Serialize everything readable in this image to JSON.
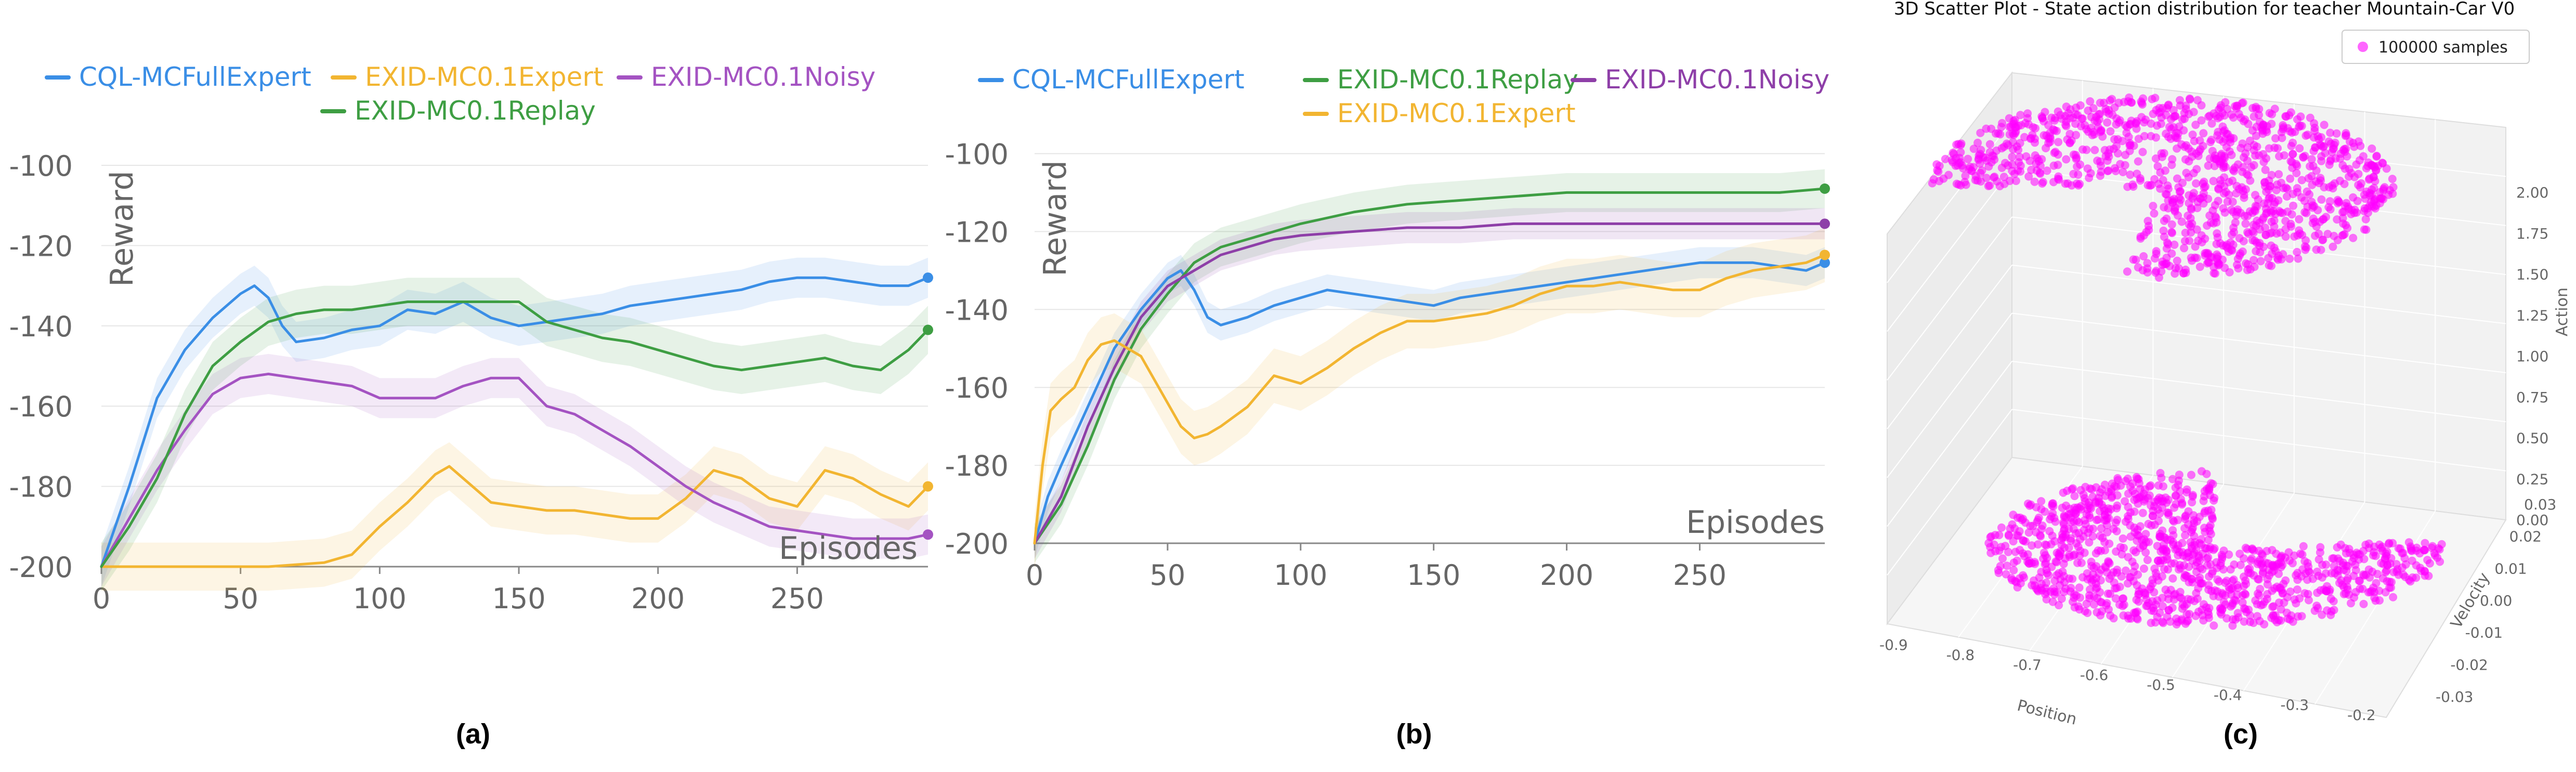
{
  "captions": {
    "a": "(a)",
    "b": "(b)",
    "c": "(c)"
  },
  "colors": {
    "cql": "#3a8ee6",
    "expert": "#f2b531",
    "replay": "#3e9e43",
    "noisy": "#a453c2",
    "noisy_b": "#8e3fa8",
    "scatter": "#ff00ff"
  },
  "chart_data": [
    {
      "id": "a",
      "type": "line",
      "ylabel": "Reward",
      "xlabel": "Episodes",
      "xlim": [
        0,
        297
      ],
      "ylim": [
        -200,
        -100
      ],
      "xticks": [
        0,
        50,
        100,
        150,
        200,
        250
      ],
      "yticks": [
        -200,
        -180,
        -160,
        -140,
        -120,
        -100
      ],
      "xtick_labels": [
        "0",
        "50",
        "100",
        "150",
        "200",
        "250"
      ],
      "ytick_labels": [
        "-200",
        "-180",
        "-160",
        "-140",
        "-120",
        "-100"
      ],
      "grid": "horizontal",
      "legend": "top",
      "series": [
        {
          "name": "CQL-MCFullExpert",
          "color": "#3a8ee6",
          "x": [
            0,
            10,
            20,
            30,
            40,
            50,
            55,
            60,
            65,
            70,
            80,
            90,
            100,
            110,
            120,
            130,
            140,
            150,
            160,
            170,
            180,
            190,
            200,
            210,
            220,
            230,
            240,
            250,
            260,
            270,
            280,
            290,
            297
          ],
          "y": [
            -200,
            -180,
            -158,
            -146,
            -138,
            -132,
            -130,
            -133,
            -140,
            -144,
            -143,
            -141,
            -140,
            -136,
            -137,
            -134,
            -138,
            -140,
            -139,
            -138,
            -137,
            -135,
            -134,
            -133,
            -132,
            -131,
            -129,
            -128,
            -128,
            -129,
            -130,
            -130,
            -128
          ],
          "band": 5
        },
        {
          "name": "EXID-MC0.1Expert",
          "color": "#f2b531",
          "x": [
            0,
            20,
            40,
            60,
            80,
            90,
            100,
            110,
            120,
            125,
            130,
            140,
            150,
            160,
            170,
            180,
            190,
            200,
            210,
            220,
            230,
            240,
            250,
            260,
            270,
            280,
            290,
            297
          ],
          "y": [
            -200,
            -200,
            -200,
            -200,
            -199,
            -197,
            -190,
            -184,
            -177,
            -175,
            -178,
            -184,
            -185,
            -186,
            -186,
            -187,
            -188,
            -188,
            -183,
            -176,
            -178,
            -183,
            -185,
            -176,
            -178,
            -182,
            -185,
            -180
          ],
          "band": 6
        },
        {
          "name": "EXID-MC0.1Noisy",
          "color": "#a453c2",
          "x": [
            0,
            10,
            20,
            30,
            40,
            50,
            60,
            70,
            80,
            90,
            100,
            110,
            120,
            130,
            140,
            150,
            160,
            170,
            180,
            190,
            200,
            210,
            220,
            230,
            240,
            250,
            260,
            270,
            280,
            290,
            297
          ],
          "y": [
            -200,
            -188,
            -176,
            -166,
            -157,
            -153,
            -152,
            -153,
            -154,
            -155,
            -158,
            -158,
            -158,
            -155,
            -153,
            -153,
            -160,
            -162,
            -166,
            -170,
            -175,
            -180,
            -184,
            -187,
            -190,
            -191,
            -192,
            -193,
            -193,
            -193,
            -192
          ],
          "band": 5
        },
        {
          "name": "EXID-MC0.1Replay",
          "color": "#3e9e43",
          "x": [
            0,
            10,
            20,
            30,
            40,
            50,
            60,
            70,
            80,
            90,
            100,
            110,
            120,
            130,
            140,
            150,
            160,
            170,
            180,
            190,
            200,
            210,
            220,
            230,
            240,
            250,
            260,
            270,
            280,
            290,
            297
          ],
          "y": [
            -200,
            -190,
            -178,
            -162,
            -150,
            -144,
            -139,
            -137,
            -136,
            -136,
            -135,
            -134,
            -134,
            -134,
            -134,
            -134,
            -139,
            -141,
            -143,
            -144,
            -146,
            -148,
            -150,
            -151,
            -150,
            -149,
            -148,
            -150,
            -151,
            -146,
            -141
          ],
          "band": 6
        }
      ],
      "legend_entries": [
        {
          "name": "CQL-MCFullExpert",
          "color": "#3a8ee6"
        },
        {
          "name": "EXID-MC0.1Expert",
          "color": "#f2b531"
        },
        {
          "name": "EXID-MC0.1Noisy",
          "color": "#a453c2"
        },
        {
          "name": "EXID-MC0.1Replay",
          "color": "#3e9e43"
        }
      ]
    },
    {
      "id": "b",
      "type": "line",
      "ylabel": "Reward",
      "xlabel": "Episodes",
      "xlim": [
        0,
        297
      ],
      "ylim": [
        -200,
        -95
      ],
      "xticks": [
        0,
        50,
        100,
        150,
        200,
        250
      ],
      "yticks": [
        -200,
        -180,
        -160,
        -140,
        -120,
        -100
      ],
      "xtick_labels": [
        "0",
        "50",
        "100",
        "150",
        "200",
        "250"
      ],
      "ytick_labels": [
        "-200",
        "-180",
        "-160",
        "-140",
        "-120",
        "-100"
      ],
      "grid": "horizontal",
      "legend": "top",
      "series": [
        {
          "name": "CQL-MCFullExpert",
          "color": "#3a8ee6",
          "x": [
            0,
            5,
            10,
            20,
            30,
            40,
            50,
            55,
            60,
            65,
            70,
            80,
            90,
            100,
            110,
            120,
            130,
            140,
            150,
            160,
            170,
            180,
            190,
            200,
            210,
            220,
            230,
            240,
            250,
            260,
            270,
            280,
            290,
            297
          ],
          "y": [
            -200,
            -188,
            -180,
            -165,
            -150,
            -140,
            -132,
            -130,
            -135,
            -142,
            -144,
            -142,
            -139,
            -137,
            -135,
            -136,
            -137,
            -138,
            -139,
            -137,
            -136,
            -135,
            -134,
            -133,
            -132,
            -131,
            -130,
            -129,
            -128,
            -128,
            -128,
            -129,
            -130,
            -128
          ],
          "band": 4
        },
        {
          "name": "EXID-MC0.1Replay",
          "color": "#3e9e43",
          "x": [
            0,
            10,
            20,
            30,
            40,
            50,
            60,
            70,
            80,
            90,
            100,
            120,
            140,
            160,
            180,
            200,
            220,
            240,
            260,
            280,
            297
          ],
          "y": [
            -200,
            -190,
            -175,
            -158,
            -145,
            -136,
            -128,
            -124,
            -122,
            -120,
            -118,
            -115,
            -113,
            -112,
            -111,
            -110,
            -110,
            -110,
            -110,
            -110,
            -109
          ],
          "band": 5
        },
        {
          "name": "EXID-MC0.1Noisy",
          "color": "#8e3fa8",
          "x": [
            0,
            10,
            20,
            30,
            40,
            50,
            60,
            70,
            80,
            90,
            100,
            120,
            140,
            160,
            180,
            200,
            220,
            240,
            260,
            280,
            297
          ],
          "y": [
            -200,
            -188,
            -170,
            -155,
            -142,
            -134,
            -130,
            -126,
            -124,
            -122,
            -121,
            -120,
            -119,
            -119,
            -118,
            -118,
            -118,
            -118,
            -118,
            -118,
            -118
          ],
          "band": 4
        },
        {
          "name": "EXID-MC0.1Expert",
          "color": "#f2b531",
          "x": [
            0,
            3,
            6,
            10,
            15,
            20,
            25,
            30,
            35,
            40,
            45,
            50,
            55,
            60,
            65,
            70,
            80,
            90,
            100,
            110,
            120,
            130,
            140,
            150,
            160,
            170,
            180,
            190,
            200,
            210,
            220,
            230,
            240,
            250,
            260,
            270,
            280,
            290,
            297
          ],
          "y": [
            -200,
            -180,
            -166,
            -163,
            -160,
            -153,
            -149,
            -148,
            -150,
            -152,
            -158,
            -164,
            -170,
            -173,
            -172,
            -170,
            -165,
            -157,
            -159,
            -155,
            -150,
            -146,
            -143,
            -143,
            -142,
            -141,
            -139,
            -136,
            -134,
            -134,
            -133,
            -134,
            -135,
            -135,
            -132,
            -130,
            -129,
            -128,
            -126
          ],
          "band": 7
        }
      ],
      "legend_entries": [
        {
          "name": "CQL-MCFullExpert",
          "color": "#3a8ee6"
        },
        {
          "name": "EXID-MC0.1Replay",
          "color": "#3e9e43"
        },
        {
          "name": "EXID-MC0.1Noisy",
          "color": "#8e3fa8"
        },
        {
          "name": "EXID-MC0.1Expert",
          "color": "#f2b531"
        }
      ]
    },
    {
      "id": "c",
      "type": "scatter",
      "title": "3D Scatter Plot - State action distribution for teacher Mountain-Car V0",
      "legend_label": "100000 samples",
      "xlabel": "Position",
      "ylabel": "Velocity",
      "zlabel": "Action",
      "xtick_labels": [
        "-0.9",
        "-0.8",
        "-0.7",
        "-0.6",
        "-0.5",
        "-0.4",
        "-0.3",
        "-0.2"
      ],
      "ytick_labels": [
        "-0.03",
        "-0.02",
        "-0.01",
        "0.00",
        "0.01",
        "0.02",
        "0.03"
      ],
      "ztick_labels": [
        "0.00",
        "0.25",
        "0.50",
        "0.75",
        "1.00",
        "1.25",
        "1.50",
        "1.75",
        "2.00"
      ],
      "xlim": [
        -0.9,
        -0.2
      ],
      "ylim": [
        -0.03,
        0.03
      ],
      "zlim": [
        0,
        2
      ],
      "clusters": [
        {
          "action": 2,
          "region": "disc-minus-wedge"
        },
        {
          "action": 0,
          "region": "disc-minus-wedge"
        }
      ]
    }
  ]
}
